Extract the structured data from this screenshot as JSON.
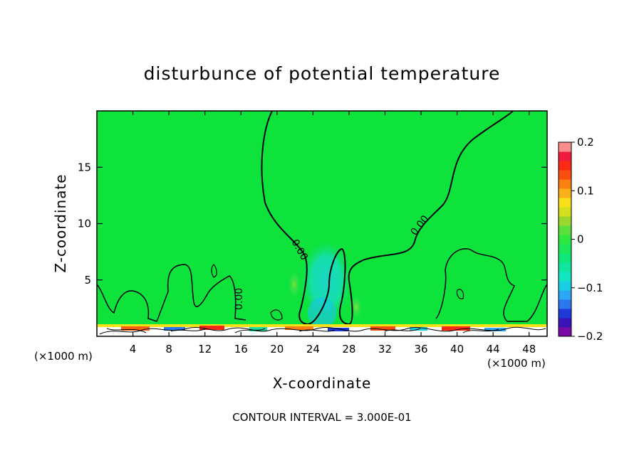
{
  "chart_data": {
    "type": "heatmap",
    "title": "disturbunce of potential temperature",
    "xlabel": "X-coordinate",
    "ylabel": "Z-coordinate",
    "x_unit_left": "(×1000 m)",
    "x_unit_right": "(×1000 m)",
    "xlim": [
      0,
      50
    ],
    "ylim": [
      0,
      20
    ],
    "x_ticks": [
      "4",
      "8",
      "12",
      "16",
      "20",
      "24",
      "28",
      "32",
      "36",
      "40",
      "44",
      "48"
    ],
    "y_ticks": [
      "5",
      "10",
      "15"
    ],
    "contour_interval_text": "CONTOUR INTERVAL = 3.000E-01",
    "contour_label": "0.00",
    "colorbar": {
      "range": [
        -0.2,
        0.2
      ],
      "tick_labels": [
        "0.2",
        "0.1",
        "0",
        "−0.1",
        "−0.2"
      ],
      "colors": [
        "#7a0aa8",
        "#3a14b8",
        "#1f3ad8",
        "#2b78ee",
        "#2ba8f4",
        "#19cfe6",
        "#10e6c4",
        "#10e6a0",
        "#0fe87a",
        "#1de85a",
        "#2ee840",
        "#5ae03a",
        "#9ad82e",
        "#d4e01e",
        "#f8e018",
        "#fcb018",
        "#fc8010",
        "#fa4e10",
        "#fa2a14",
        "#f01c40",
        "#fc8c8c"
      ]
    },
    "grid": false,
    "legend": "colorbar right"
  }
}
